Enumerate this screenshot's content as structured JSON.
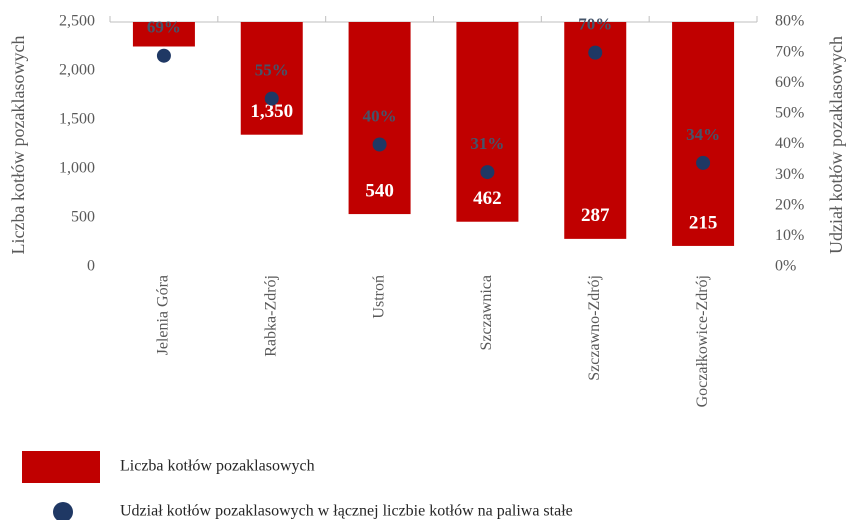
{
  "chart_data": {
    "type": "bar",
    "categories": [
      "Jelenia Góra",
      "Rabka-Zdrój",
      "Ustroń",
      "Szczawnica",
      "Szczawno-Zdrój",
      "Goczałkowice-Zdrój"
    ],
    "series": [
      {
        "name": "Liczba kotłów pozaklasowych",
        "type": "bar",
        "color": "#c00000",
        "values": [
          2250,
          1350,
          540,
          462,
          287,
          215
        ],
        "value_labels": [
          null,
          "1,350",
          "540",
          "462",
          "287",
          "215"
        ]
      },
      {
        "name": "Udział kotłów pozaklasowych w łącznej liczbie kotłów na paliwa stałe",
        "type": "scatter",
        "axis": "y2",
        "color": "#1f3864",
        "values": [
          69,
          55,
          40,
          31,
          70,
          34
        ],
        "value_labels": [
          "69%",
          "55%",
          "40%",
          "31%",
          "70%",
          "34%"
        ]
      }
    ],
    "ylabel": "Liczba kotłów pozaklasowych",
    "y2label": "Udział kotłów pozaklasowych",
    "ylim": [
      0,
      2500
    ],
    "yticks": [
      0,
      500,
      {
        "value": 1000,
        "label": "1,000"
      },
      {
        "value": 1500,
        "label": "1,500"
      },
      {
        "value": 2000,
        "label": "2,000"
      },
      {
        "value": 2500,
        "label": "2,500"
      }
    ],
    "y2lim": [
      0,
      80
    ],
    "y2ticks": [
      {
        "value": 0,
        "label": "0%"
      },
      {
        "value": 10,
        "label": "10%"
      },
      {
        "value": 20,
        "label": "20%"
      },
      {
        "value": 30,
        "label": "30%"
      },
      {
        "value": 40,
        "label": "40%"
      },
      {
        "value": 50,
        "label": "50%"
      },
      {
        "value": 60,
        "label": "60%"
      },
      {
        "value": 70,
        "label": "70%"
      },
      {
        "value": 80,
        "label": "80%"
      }
    ],
    "grid": false,
    "legend": "bottom"
  }
}
